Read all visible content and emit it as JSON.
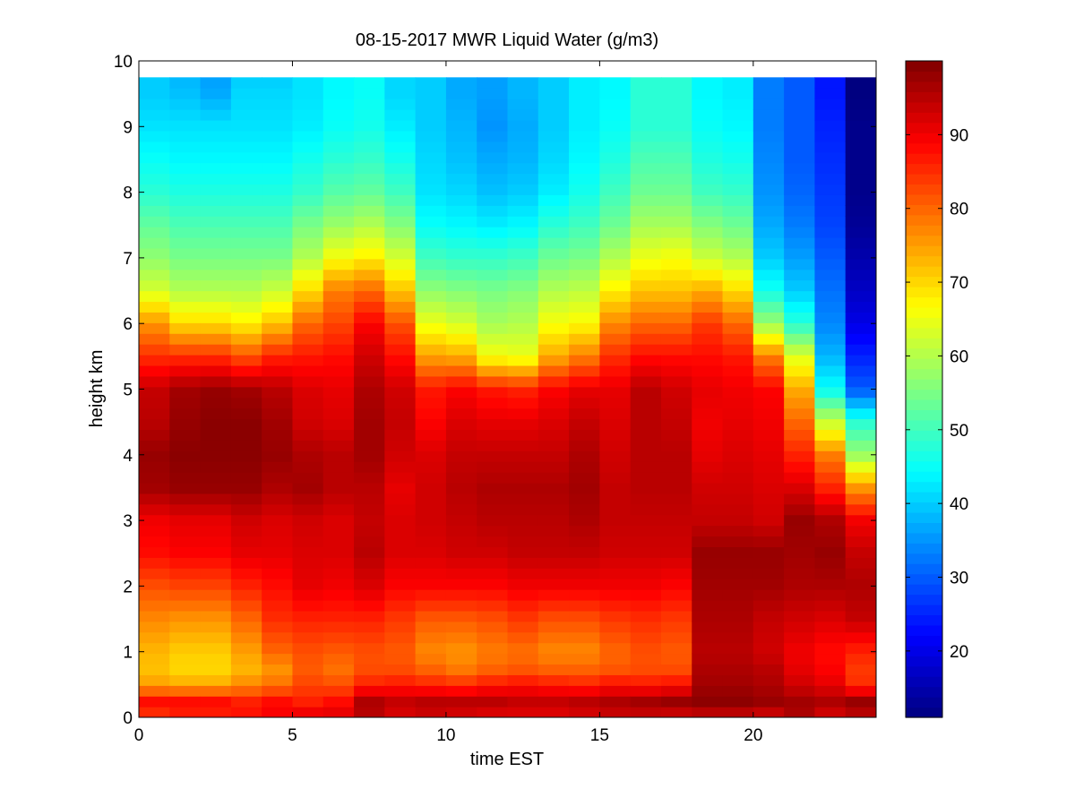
{
  "chart_data": {
    "type": "heatmap",
    "title": "08-15-2017 MWR Liquid Water (g/m3)",
    "xlabel": "time EST",
    "ylabel": "height km",
    "xlim": [
      0,
      24
    ],
    "ylim": [
      0,
      10
    ],
    "x_ticks": [
      0,
      5,
      10,
      15,
      20
    ],
    "y_ticks": [
      0,
      1,
      2,
      3,
      4,
      5,
      6,
      7,
      8,
      9,
      10
    ],
    "colorbar": {
      "colormap": "jet",
      "range": [
        11,
        100
      ],
      "ticks": [
        20,
        30,
        40,
        50,
        60,
        70,
        80,
        90
      ]
    },
    "grid": false,
    "x_centers": [
      0.5,
      1.5,
      2.5,
      3.5,
      4.5,
      5.5,
      6.5,
      7.5,
      8.5,
      9.5,
      10.5,
      11.5,
      12.5,
      13.5,
      14.5,
      15.5,
      16.5,
      17.5,
      18.5,
      19.5,
      20.5,
      21.5,
      22.5,
      23.5
    ],
    "y_levels": [
      0.0,
      0.25,
      0.5,
      0.75,
      1.0,
      1.5,
      2.0,
      2.5,
      3.0,
      3.5,
      4.0,
      4.5,
      5.0,
      5.5,
      6.0,
      6.5,
      7.0,
      7.5,
      8.0,
      8.5,
      9.0,
      9.5,
      9.75
    ],
    "z_profiles": [
      [
        84,
        88,
        75,
        72,
        73,
        77,
        82,
        88,
        90,
        97,
        98,
        95,
        94,
        85,
        76,
        63,
        57,
        53,
        48,
        45,
        42,
        40,
        40
      ],
      [
        86,
        88,
        74,
        70,
        71,
        76,
        83,
        89,
        91,
        98,
        99,
        98,
        97,
        85,
        70,
        60,
        55,
        51,
        47,
        44,
        42,
        39,
        38
      ],
      [
        86,
        88,
        74,
        70,
        71,
        76,
        83,
        89,
        91,
        98,
        99,
        99,
        98,
        85,
        70,
        60,
        55,
        51,
        47,
        44,
        42,
        37,
        36
      ],
      [
        88,
        86,
        77,
        73,
        75,
        80,
        86,
        91,
        93,
        98,
        99,
        99,
        97,
        82,
        68,
        60,
        55,
        51,
        47,
        44,
        42,
        41,
        40
      ],
      [
        90,
        88,
        79,
        76,
        80,
        85,
        88,
        91,
        92,
        96,
        98,
        97,
        95,
        86,
        72,
        62,
        55,
        51,
        47,
        44,
        42,
        41,
        40
      ],
      [
        92,
        86,
        83,
        81,
        82,
        86,
        91,
        92,
        93,
        97,
        96,
        93,
        92,
        87,
        80,
        70,
        60,
        55,
        49,
        46,
        43,
        42,
        42
      ],
      [
        92,
        88,
        82,
        79,
        81,
        86,
        90,
        92,
        92,
        95,
        95,
        92,
        91,
        88,
        83,
        78,
        66,
        58,
        52,
        48,
        45,
        44,
        44
      ],
      [
        95,
        96,
        86,
        82,
        82,
        86,
        92,
        95,
        94,
        95,
        97,
        97,
        96,
        93,
        89,
        80,
        68,
        60,
        53,
        49,
        46,
        45,
        45
      ],
      [
        92,
        94,
        87,
        82,
        81,
        84,
        89,
        92,
        92,
        91,
        93,
        94,
        93,
        88,
        82,
        72,
        63,
        56,
        50,
        46,
        43,
        41,
        41
      ],
      [
        93,
        95,
        86,
        80,
        77,
        81,
        89,
        92,
        93,
        93,
        92,
        89,
        87,
        75,
        65,
        57,
        50,
        45,
        42,
        41,
        40,
        40,
        40
      ],
      [
        92,
        95,
        85,
        78,
        76,
        81,
        89,
        93,
        94,
        95,
        94,
        92,
        89,
        74,
        63,
        56,
        49,
        44,
        41,
        39,
        38,
        37,
        37
      ],
      [
        91,
        95,
        87,
        80,
        78,
        82,
        89,
        93,
        95,
        96,
        94,
        91,
        87,
        66,
        59,
        55,
        49,
        43,
        39,
        37,
        35,
        36,
        36
      ],
      [
        91,
        94,
        88,
        81,
        79,
        84,
        90,
        94,
        95,
        96,
        94,
        91,
        86,
        65,
        60,
        56,
        50,
        44,
        40,
        38,
        37,
        38,
        38
      ],
      [
        91,
        94,
        87,
        80,
        77,
        82,
        90,
        94,
        95,
        96,
        94,
        92,
        89,
        74,
        66,
        60,
        54,
        48,
        43,
        41,
        40,
        40,
        40
      ],
      [
        92,
        95,
        86,
        80,
        77,
        82,
        90,
        94,
        96,
        97,
        96,
        94,
        91,
        78,
        67,
        61,
        55,
        50,
        46,
        44,
        43,
        43,
        43
      ],
      [
        93,
        96,
        88,
        81,
        80,
        84,
        90,
        93,
        94,
        94,
        93,
        92,
        91,
        85,
        77,
        68,
        60,
        54,
        50,
        47,
        45,
        44,
        44
      ],
      [
        93,
        97,
        87,
        82,
        82,
        85,
        90,
        93,
        94,
        95,
        95,
        95,
        95,
        88,
        80,
        72,
        65,
        59,
        54,
        51,
        48,
        48,
        48
      ],
      [
        92,
        98,
        88,
        82,
        81,
        84,
        89,
        93,
        94,
        95,
        95,
        94,
        93,
        88,
        80,
        72,
        66,
        59,
        54,
        51,
        48,
        48,
        48
      ],
      [
        93,
        99,
        97,
        96,
        95,
        96,
        97,
        98,
        94,
        93,
        91,
        90,
        91,
        88,
        84,
        74,
        62,
        56,
        50,
        47,
        45,
        44,
        44
      ],
      [
        93,
        99,
        97,
        96,
        95,
        96,
        97,
        98,
        94,
        93,
        92,
        91,
        90,
        87,
        80,
        70,
        60,
        54,
        49,
        46,
        44,
        43,
        43
      ],
      [
        92,
        98,
        96,
        95,
        93,
        94,
        97,
        98,
        93,
        92,
        91,
        90,
        89,
        78,
        58,
        46,
        40,
        37,
        35,
        34,
        33,
        33,
        33
      ],
      [
        96,
        97,
        93,
        91,
        90,
        93,
        96,
        97,
        98,
        92,
        86,
        80,
        74,
        64,
        48,
        40,
        36,
        33,
        31,
        30,
        30,
        30,
        30
      ],
      [
        92,
        96,
        91,
        89,
        88,
        92,
        96,
        98,
        96,
        86,
        78,
        62,
        45,
        38,
        34,
        32,
        30,
        28,
        27,
        26,
        25,
        24,
        24
      ],
      [
        94,
        98,
        85,
        84,
        86,
        94,
        96,
        94,
        90,
        76,
        58,
        48,
        30,
        25,
        20,
        17,
        15,
        13,
        12,
        12,
        12,
        11,
        11
      ]
    ]
  }
}
